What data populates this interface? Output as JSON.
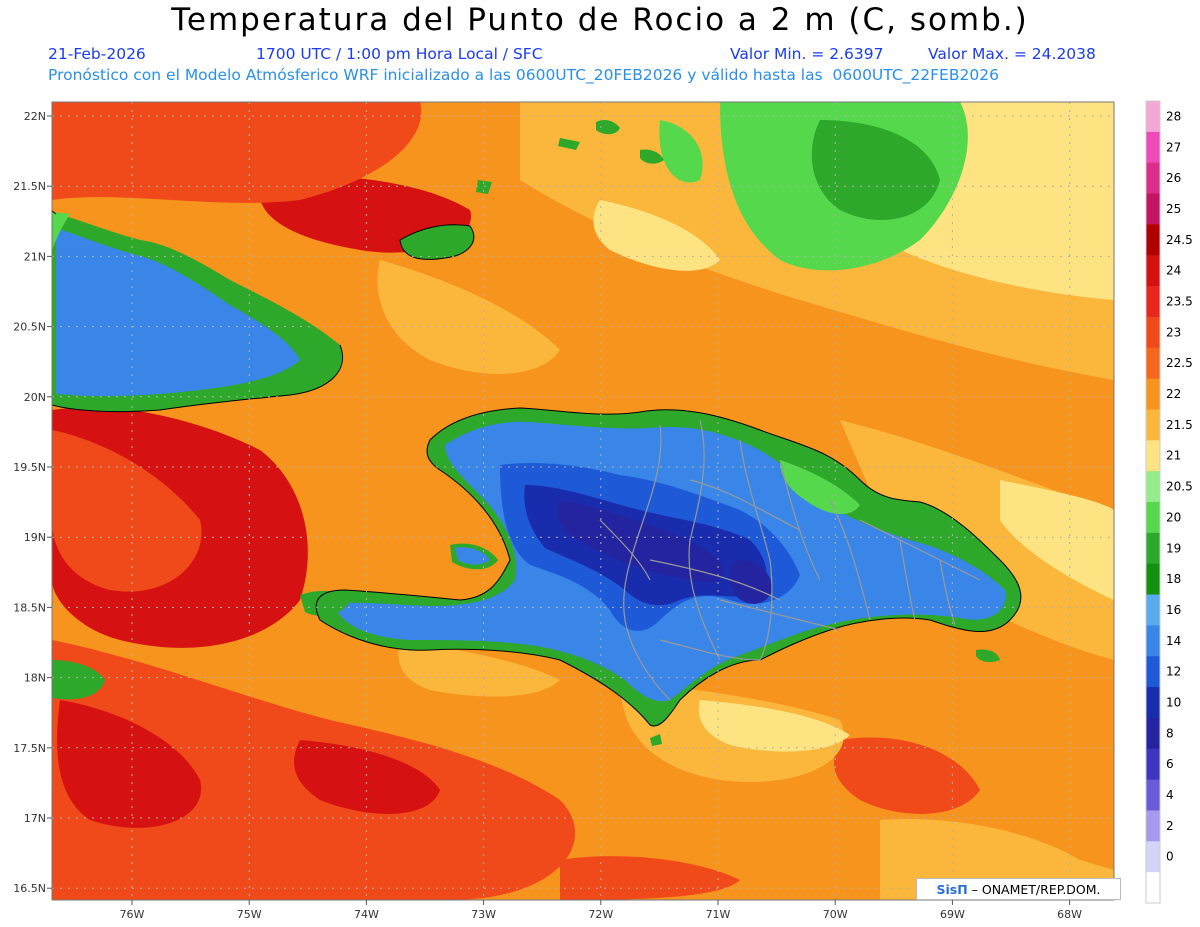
{
  "header": {
    "title": "Temperatura del Punto de Rocio a 2 m (C, somb.)",
    "date": "21-Feb-2026",
    "time": "1700 UTC / 1:00 pm Hora Local / SFC",
    "min_label": "Valor Min. = 2.6397",
    "max_label": "Valor Max. = 24.2038",
    "forecast": "Pronóstico con el Modelo Atmósferico WRF inicializado a las 0600UTC_20FEB2026 y válido hasta las  0600UTC_22FEB2026"
  },
  "map": {
    "lat_labels": [
      "22N",
      "21.5N",
      "21N",
      "20.5N",
      "20N",
      "19.5N",
      "19N",
      "18.5N",
      "18N",
      "17.5N",
      "17N",
      "16.5N"
    ],
    "lon_labels": [
      "76W",
      "75W",
      "74W",
      "73W",
      "72W",
      "71W",
      "70W",
      "69W",
      "68W"
    ],
    "credit_brand": "SisΠ",
    "credit_text": " – ONAMET/REP.DOM."
  },
  "colorbar": {
    "labels": [
      "28",
      "27",
      "26",
      "25",
      "24.5",
      "24",
      "23.5",
      "23",
      "22.5",
      "22",
      "21.5",
      "21",
      "20.5",
      "20",
      "19",
      "18",
      "16",
      "14",
      "12",
      "10",
      "8",
      "6",
      "4",
      "2",
      "0"
    ],
    "colors": [
      "#f4a8d6",
      "#ee4ab8",
      "#dc2c8c",
      "#c41464",
      "#b00000",
      "#d61111",
      "#e8281e",
      "#f04a1a",
      "#f7661d",
      "#f7941d",
      "#fbb63c",
      "#fde381",
      "#95ec8a",
      "#56d84d",
      "#2ea82a",
      "#139010",
      "#5aaaf0",
      "#3a86e8",
      "#1e5ad8",
      "#1a2cae",
      "#2424a0",
      "#3c36c0",
      "#6a5cd8",
      "#a699ee",
      "#d4d4f8",
      "#ffffff"
    ]
  },
  "colors": {
    "ocean_base": "#f7941d",
    "ocean_warm": "#f04a1a",
    "ocean_hot": "#d61111",
    "ocean_mild": "#fbb63c",
    "ocean_pale": "#fde381",
    "land_green": "#2ea82a",
    "land_lightgreen": "#56d84d",
    "land_blue": "#3a86e8",
    "land_deepblue": "#1e5ad8",
    "land_indigo": "#1a2cae",
    "land_purple": "#2424a0"
  }
}
